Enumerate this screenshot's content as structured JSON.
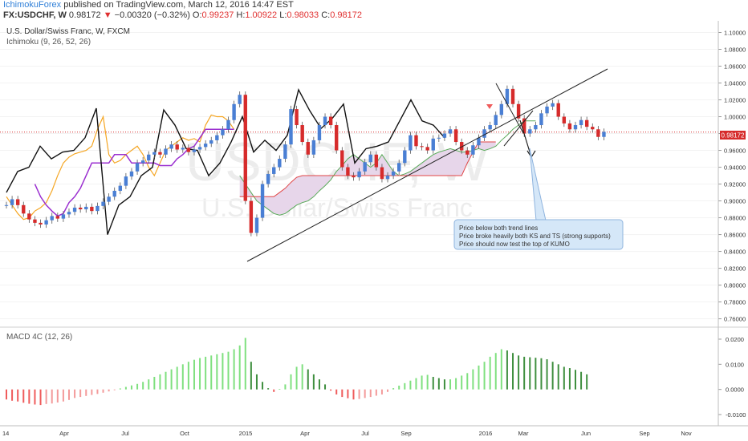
{
  "header": {
    "author": "IchimokuForex",
    "published": "published on TradingView.com, March 12, 2016 14:47 EST",
    "symbol": "FX:USDCHF, W",
    "price": "0.98172",
    "change_arrow": "▼",
    "change": "−0.00320 (−0.32%)",
    "o_label": "O:",
    "o": "0.99237",
    "h_label": "H:",
    "h": "1.00922",
    "l_label": "L:",
    "l": "0.98033",
    "c_label": "C:",
    "c": "0.98172"
  },
  "colors": {
    "up": "#4a7fd4",
    "down": "#d62b2b",
    "tenkan": "#f5a623",
    "kijun": "#9b30d0",
    "chikou": "#111111",
    "kumo_fill": "#e7d6ea",
    "senkou_a": "#5aaa5a",
    "senkou_b": "#e04545",
    "macd_up": "#7fe07f",
    "macd_up_fading": "#3f8f3f",
    "macd_down": "#ef5c5c",
    "macd_down_fading": "#f39a9a",
    "callout_bg": "#d5e7f8",
    "callout_border": "#8fb4de"
  },
  "price_pane": {
    "title": "U.S. Dollar/Swiss Franc, W, FXCM",
    "indicator": "Ichimoku (9, 26, 52, 26)",
    "watermark_symbol": "USDCHF, W",
    "watermark_name": "U.S. Dollar/Swiss Franc",
    "last_price_label": "0.98172",
    "callout": [
      "Price below both trend lines",
      "Price broke heavily both KS and TS (strong supports)",
      "Price should now test the top of KUMO"
    ]
  },
  "macd_pane": {
    "title": "MACD 4C (12, 26)"
  },
  "chart_data": [
    {
      "type": "candlestick",
      "title": "U.S. Dollar/Swiss Franc, W, FXCM",
      "indicator": "Ichimoku (9, 26, 52, 26)",
      "x_tick_labels": [
        "14",
        "Apr",
        "Jul",
        "Oct",
        "2015",
        "Apr",
        "Jul",
        "Sep",
        "2016",
        "Mar",
        "Jun",
        "Sep",
        "Nov"
      ],
      "y_tick_labels": [
        "1.10000",
        "1.08000",
        "1.06000",
        "1.04000",
        "1.02000",
        "1.00000",
        "0.98000",
        "0.96000",
        "0.94000",
        "0.92000",
        "0.90000",
        "0.88000",
        "0.86000",
        "0.84000",
        "0.82000",
        "0.80000",
        "0.78000",
        "0.76000"
      ],
      "ylim": [
        0.752,
        1.11
      ],
      "last_price": 0.98172,
      "series": [
        {
          "name": "close",
          "values": [
            0.895,
            0.902,
            0.895,
            0.885,
            0.878,
            0.874,
            0.872,
            0.877,
            0.882,
            0.879,
            0.884,
            0.887,
            0.892,
            0.89,
            0.893,
            0.888,
            0.894,
            0.899,
            0.905,
            0.912,
            0.918,
            0.929,
            0.935,
            0.945,
            0.948,
            0.955,
            0.958,
            0.955,
            0.962,
            0.967,
            0.961,
            0.963,
            0.958,
            0.961,
            0.964,
            0.968,
            0.972,
            0.978,
            0.985,
            0.996,
            1.015,
            1.026,
            0.9,
            0.862,
            0.88,
            0.92,
            0.932,
            0.94,
            0.95,
            0.967,
            1.009,
            0.99,
            0.97,
            0.955,
            0.972,
            0.99,
            1.0,
            0.99,
            0.96,
            0.94,
            0.93,
            0.928,
            0.935,
            0.946,
            0.955,
            0.94,
            0.926,
            0.93,
            0.935,
            0.945,
            0.96,
            0.978,
            0.965,
            0.964,
            0.96,
            0.974,
            0.975,
            0.98,
            0.985,
            0.97,
            0.96,
            0.955,
            0.966,
            0.975,
            0.985,
            0.99,
            1.002,
            1.015,
            1.033,
            1.015,
            0.998,
            0.98,
            0.985,
            0.99,
            1.004,
            1.012,
            1.016,
            1.0,
            0.992,
            0.985,
            0.99,
            0.996,
            0.988,
            0.985,
            0.976,
            0.982
          ]
        },
        {
          "name": "tenkan",
          "values": [
            0.905,
            0.895,
            0.885,
            0.878,
            0.88,
            0.888,
            0.892,
            0.898,
            0.912,
            0.93,
            0.945,
            0.952,
            0.956,
            0.958,
            0.96,
            0.965,
            0.985,
            1.0,
            0.955,
            0.945,
            0.948,
            0.955,
            0.96,
            0.965,
            0.955,
            0.94,
            0.93,
            0.945,
            0.96,
            0.965,
            0.97,
            0.975,
            0.972,
            0.974,
            0.97,
            0.99,
            1.002,
            1.0,
            1.0,
            0.995,
            0.985
          ]
        },
        {
          "name": "kijun",
          "values": [
            0.92,
            0.905,
            0.895,
            0.888,
            0.882,
            0.885,
            0.898,
            0.905,
            0.915,
            0.93,
            0.945,
            0.945,
            0.945,
            0.945,
            0.955,
            0.955,
            0.955,
            0.945,
            0.945,
            0.945,
            0.945,
            0.945,
            0.942,
            0.942,
            0.942,
            0.95,
            0.955,
            0.962,
            0.965,
            0.975,
            0.985,
            0.985,
            0.985,
            0.985,
            0.985,
            0.985
          ]
        },
        {
          "name": "chikou",
          "values": [
            0.91,
            0.935,
            0.94,
            0.965,
            0.95,
            0.958,
            0.96,
            0.975,
            1.01,
            0.86,
            0.895,
            0.905,
            0.93,
            0.94,
            1.008,
            0.99,
            0.962,
            0.96,
            0.93,
            0.945,
            0.97,
            1.0,
            0.958,
            0.972,
            0.96,
            0.978,
            1.032,
            1.007,
            0.986,
            0.998,
            1.015,
            0.945,
            0.962,
            0.965,
            0.97,
            0.995,
            1.02,
            0.995,
            0.99,
            0.975
          ]
        },
        {
          "name": "senkou_a",
          "values": [
            0.93,
            0.92,
            0.91,
            0.9,
            0.895,
            0.89,
            0.885,
            0.883,
            0.885,
            0.89,
            0.895,
            0.898,
            0.9,
            0.905,
            0.912,
            0.918,
            0.925,
            0.935,
            0.942,
            0.95,
            0.955,
            0.95,
            0.945,
            0.94,
            0.945,
            0.955,
            0.945,
            0.935,
            0.93,
            0.932,
            0.935,
            0.94,
            0.945,
            0.95,
            0.955,
            0.958,
            0.96,
            0.962,
            0.96,
            0.958,
            0.958,
            0.96,
            0.962,
            0.96,
            0.962,
            0.965,
            0.972,
            0.978,
            0.985,
            0.99,
            0.995,
            0.995,
            0.995
          ]
        },
        {
          "name": "senkou_b",
          "values": [
            0.905,
            0.905,
            0.905,
            0.905,
            0.905,
            0.905,
            0.905,
            0.91,
            0.915,
            0.922,
            0.928,
            0.93,
            0.93,
            0.93,
            0.93,
            0.93,
            0.93,
            0.93,
            0.93,
            0.93,
            0.93,
            0.93,
            0.93,
            0.93,
            0.93,
            0.93,
            0.93,
            0.93,
            0.93,
            0.93,
            0.93,
            0.93,
            0.93,
            0.93,
            0.93,
            0.93,
            0.93,
            0.93,
            0.93,
            0.93,
            0.945,
            0.958,
            0.97,
            0.97,
            0.97,
            0.97
          ]
        }
      ]
    },
    {
      "type": "bar",
      "title": "MACD 4C (12, 26)",
      "y_tick_labels": [
        "0.0200",
        "0.0100",
        "0.0000",
        "-0.0100"
      ],
      "ylim": [
        -0.0135,
        0.0235
      ],
      "values": [
        -0.004,
        -0.0045,
        -0.0048,
        -0.0053,
        -0.0057,
        -0.006,
        -0.0062,
        -0.0058,
        -0.0056,
        -0.0052,
        -0.0048,
        -0.0042,
        -0.0034,
        -0.003,
        -0.0026,
        -0.0022,
        -0.0018,
        -0.0013,
        -0.0008,
        -0.0003,
        0.0004,
        0.001,
        0.0016,
        0.0022,
        0.003,
        0.004,
        0.005,
        0.006,
        0.007,
        0.008,
        0.009,
        0.01,
        0.011,
        0.0118,
        0.0125,
        0.013,
        0.0135,
        0.014,
        0.0145,
        0.015,
        0.016,
        0.0175,
        0.0205,
        0.011,
        0.006,
        0.003,
        0.0005,
        -0.001,
        0.0002,
        0.002,
        0.006,
        0.009,
        0.01,
        0.008,
        0.006,
        0.004,
        0.002,
        -0.0005,
        -0.002,
        -0.003,
        -0.0035,
        -0.004,
        -0.0038,
        -0.0034,
        -0.003,
        -0.0025,
        -0.002,
        -0.001,
        0.0005,
        0.0015,
        0.0025,
        0.0035,
        0.0045,
        0.0055,
        0.0058,
        0.005,
        0.0045,
        0.004,
        0.004,
        0.0045,
        0.0055,
        0.0065,
        0.008,
        0.0095,
        0.011,
        0.013,
        0.0145,
        0.016,
        0.0155,
        0.0145,
        0.0135,
        0.013,
        0.0128,
        0.0126,
        0.0124,
        0.012,
        0.011,
        0.01,
        0.009,
        0.0085,
        0.0078,
        0.007,
        0.006
      ]
    }
  ]
}
